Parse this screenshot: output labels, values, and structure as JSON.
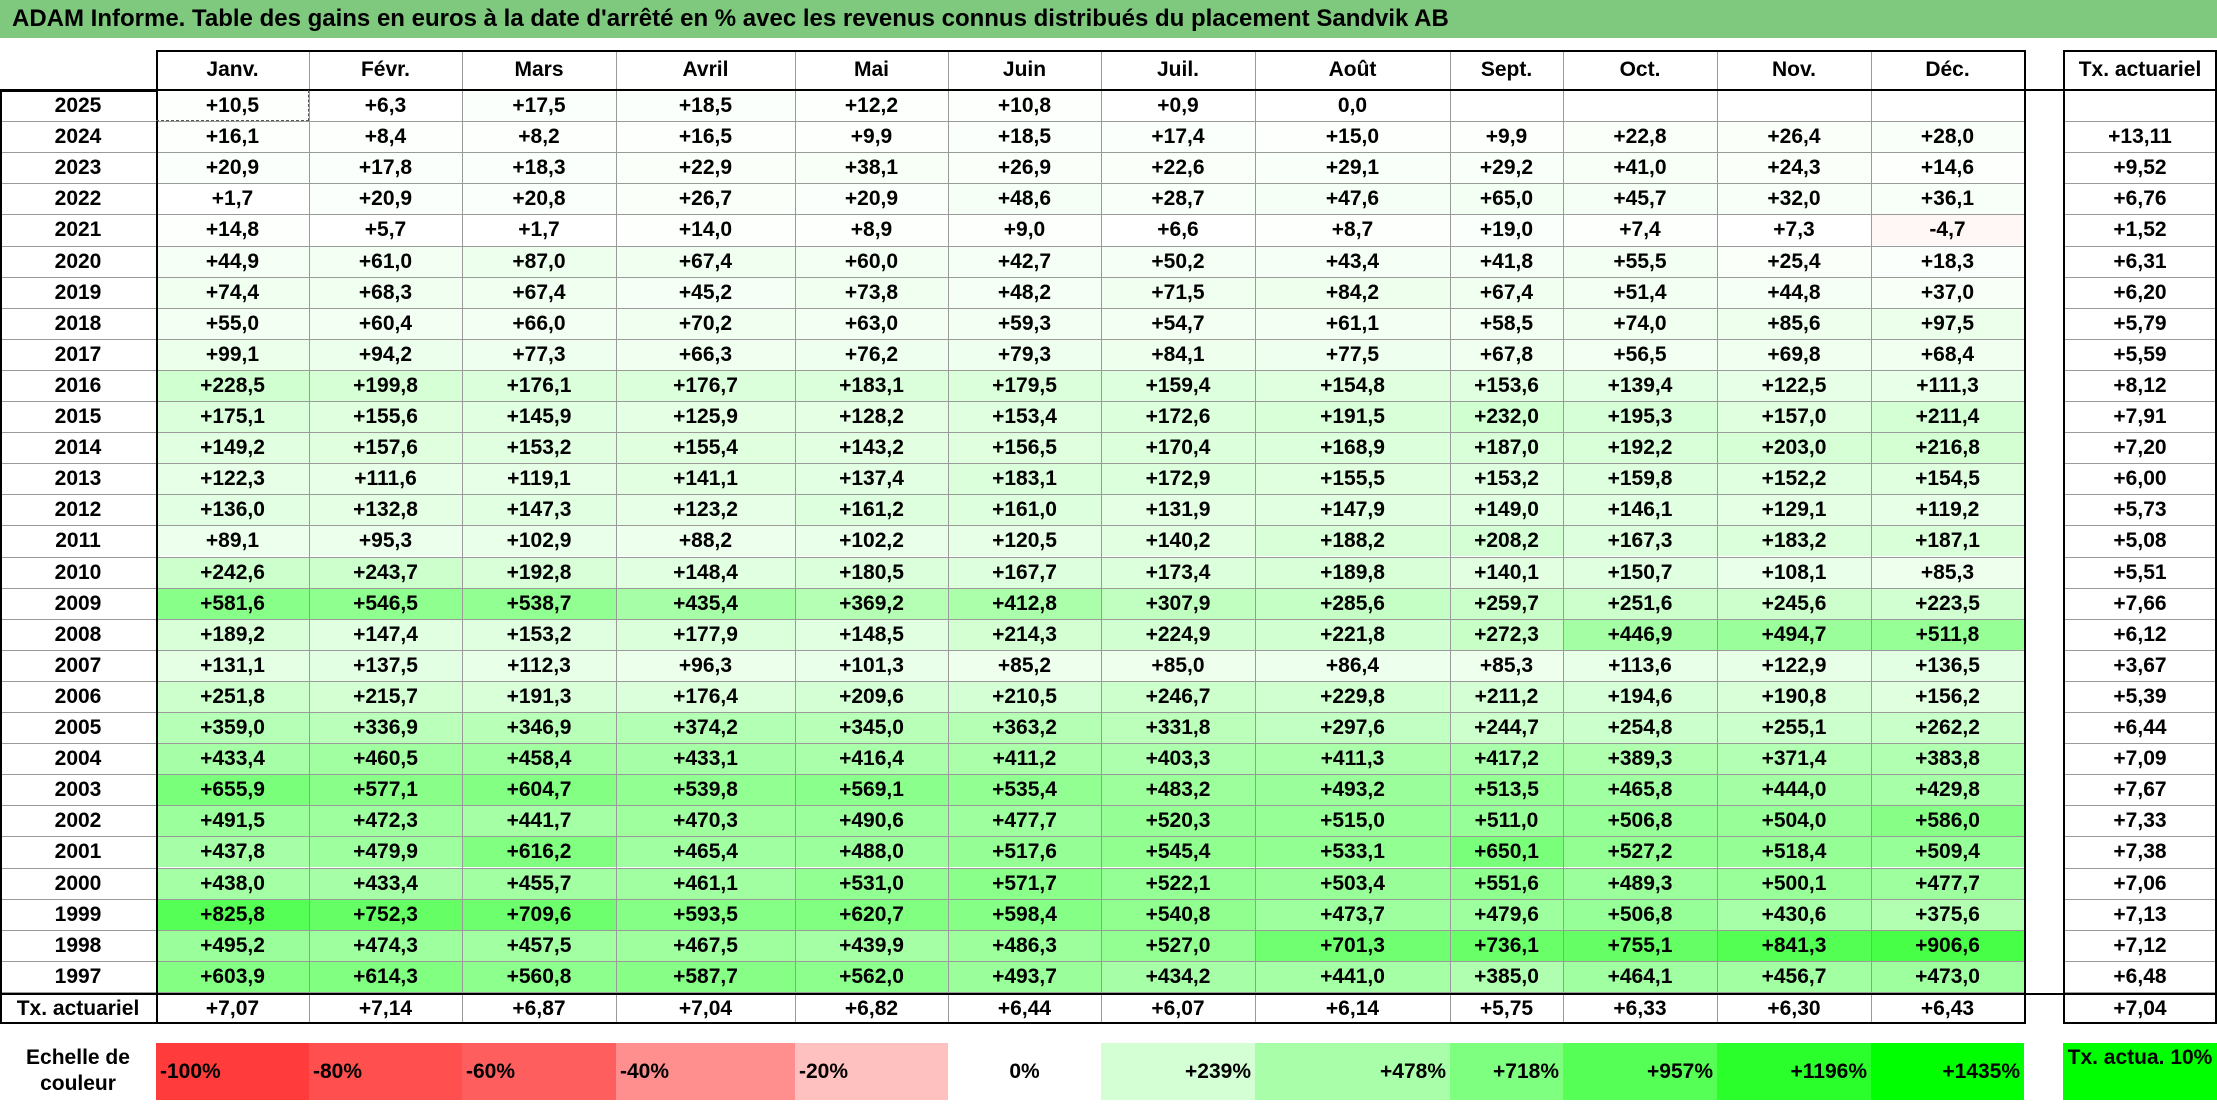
{
  "title": "ADAM Informe. Table des gains en euros à la date d'arrêté en % avec les revenus connus distribués du placement Sandvik AB",
  "months": [
    "Janv.",
    "Févr.",
    "Mars",
    "Avril",
    "Mai",
    "Juin",
    "Juil.",
    "Août",
    "Sept.",
    "Oct.",
    "Nov.",
    "Déc."
  ],
  "rate_header": "Tx. actuariel",
  "rows": [
    {
      "year": "2025",
      "values": [
        "+10,5",
        "+6,3",
        "+17,5",
        "+18,5",
        "+12,2",
        "+10,8",
        "+0,9",
        "0,0",
        "",
        "",
        "",
        ""
      ],
      "rate": ""
    },
    {
      "year": "2024",
      "values": [
        "+16,1",
        "+8,4",
        "+8,2",
        "+16,5",
        "+9,9",
        "+18,5",
        "+17,4",
        "+15,0",
        "+9,9",
        "+22,8",
        "+26,4",
        "+28,0"
      ],
      "rate": "+13,11"
    },
    {
      "year": "2023",
      "values": [
        "+20,9",
        "+17,8",
        "+18,3",
        "+22,9",
        "+38,1",
        "+26,9",
        "+22,6",
        "+29,1",
        "+29,2",
        "+41,0",
        "+24,3",
        "+14,6"
      ],
      "rate": "+9,52"
    },
    {
      "year": "2022",
      "values": [
        "+1,7",
        "+20,9",
        "+20,8",
        "+26,7",
        "+20,9",
        "+48,6",
        "+28,7",
        "+47,6",
        "+65,0",
        "+45,7",
        "+32,0",
        "+36,1"
      ],
      "rate": "+6,76"
    },
    {
      "year": "2021",
      "values": [
        "+14,8",
        "+5,7",
        "+1,7",
        "+14,0",
        "+8,9",
        "+9,0",
        "+6,6",
        "+8,7",
        "+19,0",
        "+7,4",
        "+7,3",
        "-4,7"
      ],
      "rate": "+1,52"
    },
    {
      "year": "2020",
      "values": [
        "+44,9",
        "+61,0",
        "+87,0",
        "+67,4",
        "+60,0",
        "+42,7",
        "+50,2",
        "+43,4",
        "+41,8",
        "+55,5",
        "+25,4",
        "+18,3"
      ],
      "rate": "+6,31"
    },
    {
      "year": "2019",
      "values": [
        "+74,4",
        "+68,3",
        "+67,4",
        "+45,2",
        "+73,8",
        "+48,2",
        "+71,5",
        "+84,2",
        "+67,4",
        "+51,4",
        "+44,8",
        "+37,0"
      ],
      "rate": "+6,20"
    },
    {
      "year": "2018",
      "values": [
        "+55,0",
        "+60,4",
        "+66,0",
        "+70,2",
        "+63,0",
        "+59,3",
        "+54,7",
        "+61,1",
        "+58,5",
        "+74,0",
        "+85,6",
        "+97,5"
      ],
      "rate": "+5,79"
    },
    {
      "year": "2017",
      "values": [
        "+99,1",
        "+94,2",
        "+77,3",
        "+66,3",
        "+76,2",
        "+79,3",
        "+84,1",
        "+77,5",
        "+67,8",
        "+56,5",
        "+69,8",
        "+68,4"
      ],
      "rate": "+5,59"
    },
    {
      "year": "2016",
      "values": [
        "+228,5",
        "+199,8",
        "+176,1",
        "+176,7",
        "+183,1",
        "+179,5",
        "+159,4",
        "+154,8",
        "+153,6",
        "+139,4",
        "+122,5",
        "+111,3"
      ],
      "rate": "+8,12"
    },
    {
      "year": "2015",
      "values": [
        "+175,1",
        "+155,6",
        "+145,9",
        "+125,9",
        "+128,2",
        "+153,4",
        "+172,6",
        "+191,5",
        "+232,0",
        "+195,3",
        "+157,0",
        "+211,4"
      ],
      "rate": "+7,91"
    },
    {
      "year": "2014",
      "values": [
        "+149,2",
        "+157,6",
        "+153,2",
        "+155,4",
        "+143,2",
        "+156,5",
        "+170,4",
        "+168,9",
        "+187,0",
        "+192,2",
        "+203,0",
        "+216,8"
      ],
      "rate": "+7,20"
    },
    {
      "year": "2013",
      "values": [
        "+122,3",
        "+111,6",
        "+119,1",
        "+141,1",
        "+137,4",
        "+183,1",
        "+172,9",
        "+155,5",
        "+153,2",
        "+159,8",
        "+152,2",
        "+154,5"
      ],
      "rate": "+6,00"
    },
    {
      "year": "2012",
      "values": [
        "+136,0",
        "+132,8",
        "+147,3",
        "+123,2",
        "+161,2",
        "+161,0",
        "+131,9",
        "+147,9",
        "+149,0",
        "+146,1",
        "+129,1",
        "+119,2"
      ],
      "rate": "+5,73"
    },
    {
      "year": "2011",
      "values": [
        "+89,1",
        "+95,3",
        "+102,9",
        "+88,2",
        "+102,2",
        "+120,5",
        "+140,2",
        "+188,2",
        "+208,2",
        "+167,3",
        "+183,2",
        "+187,1"
      ],
      "rate": "+5,08"
    },
    {
      "year": "2010",
      "values": [
        "+242,6",
        "+243,7",
        "+192,8",
        "+148,4",
        "+180,5",
        "+167,7",
        "+173,4",
        "+189,8",
        "+140,1",
        "+150,7",
        "+108,1",
        "+85,3"
      ],
      "rate": "+5,51"
    },
    {
      "year": "2009",
      "values": [
        "+581,6",
        "+546,5",
        "+538,7",
        "+435,4",
        "+369,2",
        "+412,8",
        "+307,9",
        "+285,6",
        "+259,7",
        "+251,6",
        "+245,6",
        "+223,5"
      ],
      "rate": "+7,66"
    },
    {
      "year": "2008",
      "values": [
        "+189,2",
        "+147,4",
        "+153,2",
        "+177,9",
        "+148,5",
        "+214,3",
        "+224,9",
        "+221,8",
        "+272,3",
        "+446,9",
        "+494,7",
        "+511,8"
      ],
      "rate": "+6,12"
    },
    {
      "year": "2007",
      "values": [
        "+131,1",
        "+137,5",
        "+112,3",
        "+96,3",
        "+101,3",
        "+85,2",
        "+85,0",
        "+86,4",
        "+85,3",
        "+113,6",
        "+122,9",
        "+136,5"
      ],
      "rate": "+3,67"
    },
    {
      "year": "2006",
      "values": [
        "+251,8",
        "+215,7",
        "+191,3",
        "+176,4",
        "+209,6",
        "+210,5",
        "+246,7",
        "+229,8",
        "+211,2",
        "+194,6",
        "+190,8",
        "+156,2"
      ],
      "rate": "+5,39"
    },
    {
      "year": "2005",
      "values": [
        "+359,0",
        "+336,9",
        "+346,9",
        "+374,2",
        "+345,0",
        "+363,2",
        "+331,8",
        "+297,6",
        "+244,7",
        "+254,8",
        "+255,1",
        "+262,2"
      ],
      "rate": "+6,44"
    },
    {
      "year": "2004",
      "values": [
        "+433,4",
        "+460,5",
        "+458,4",
        "+433,1",
        "+416,4",
        "+411,2",
        "+403,3",
        "+411,3",
        "+417,2",
        "+389,3",
        "+371,4",
        "+383,8"
      ],
      "rate": "+7,09"
    },
    {
      "year": "2003",
      "values": [
        "+655,9",
        "+577,1",
        "+604,7",
        "+539,8",
        "+569,1",
        "+535,4",
        "+483,2",
        "+493,2",
        "+513,5",
        "+465,8",
        "+444,0",
        "+429,8"
      ],
      "rate": "+7,67"
    },
    {
      "year": "2002",
      "values": [
        "+491,5",
        "+472,3",
        "+441,7",
        "+470,3",
        "+490,6",
        "+477,7",
        "+520,3",
        "+515,0",
        "+511,0",
        "+506,8",
        "+504,0",
        "+586,0"
      ],
      "rate": "+7,33"
    },
    {
      "year": "2001",
      "values": [
        "+437,8",
        "+479,9",
        "+616,2",
        "+465,4",
        "+488,0",
        "+517,6",
        "+545,4",
        "+533,1",
        "+650,1",
        "+527,2",
        "+518,4",
        "+509,4"
      ],
      "rate": "+7,38"
    },
    {
      "year": "2000",
      "values": [
        "+438,0",
        "+433,4",
        "+455,7",
        "+461,1",
        "+531,0",
        "+571,7",
        "+522,1",
        "+503,4",
        "+551,6",
        "+489,3",
        "+500,1",
        "+477,7"
      ],
      "rate": "+7,06"
    },
    {
      "year": "1999",
      "values": [
        "+825,8",
        "+752,3",
        "+709,6",
        "+593,5",
        "+620,7",
        "+598,4",
        "+540,8",
        "+473,7",
        "+479,6",
        "+506,8",
        "+430,6",
        "+375,6"
      ],
      "rate": "+7,13"
    },
    {
      "year": "1998",
      "values": [
        "+495,2",
        "+474,3",
        "+457,5",
        "+467,5",
        "+439,9",
        "+486,3",
        "+527,0",
        "+701,3",
        "+736,1",
        "+755,1",
        "+841,3",
        "+906,6"
      ],
      "rate": "+7,12"
    },
    {
      "year": "1997",
      "values": [
        "+603,9",
        "+614,3",
        "+560,8",
        "+587,7",
        "+562,0",
        "+493,7",
        "+434,2",
        "+441,0",
        "+385,0",
        "+464,1",
        "+456,7",
        "+473,0"
      ],
      "rate": "+6,48"
    }
  ],
  "footer": {
    "label": "Tx. actuariel",
    "values": [
      "+7,07",
      "+7,14",
      "+6,87",
      "+7,04",
      "+6,82",
      "+6,44",
      "+6,07",
      "+6,14",
      "+5,75",
      "+6,33",
      "+6,30",
      "+6,43"
    ],
    "rate": "+7,04"
  },
  "legend": {
    "label": "Echelle de couleur",
    "items": [
      {
        "text": "-100%",
        "color": "#ff3b3b"
      },
      {
        "text": "-80%",
        "color": "#ff4f4f"
      },
      {
        "text": "-60%",
        "color": "#ff5e5e"
      },
      {
        "text": "-40%",
        "color": "#ff8e8e"
      },
      {
        "text": "-20%",
        "color": "#ffc0c0"
      },
      {
        "text": "0%",
        "color": "#ffffff"
      },
      {
        "text": "+239%",
        "color": "#d4ffd4"
      },
      {
        "text": "+478%",
        "color": "#a9ffa9"
      },
      {
        "text": "+718%",
        "color": "#7fff7f"
      },
      {
        "text": "+957%",
        "color": "#55ff55"
      },
      {
        "text": "+1196%",
        "color": "#2bff2b"
      },
      {
        "text": "+1435%",
        "color": "#00ff00"
      }
    ],
    "rate_box": {
      "text": "Tx. actua. 10%",
      "color": "#00ff00"
    }
  }
}
